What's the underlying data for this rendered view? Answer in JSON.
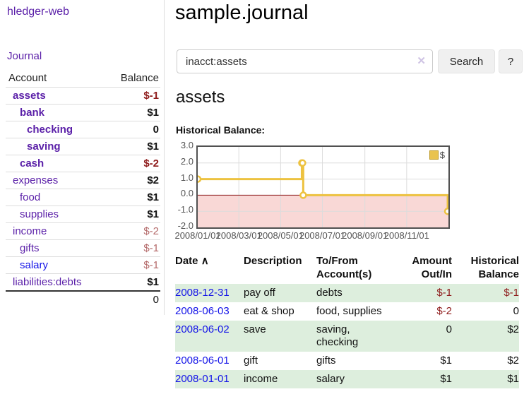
{
  "colors": {
    "link_purple": "#5a1fa8",
    "link_blue": "#1414e8",
    "negative_dark": "#8e1b1b",
    "negative_light": "#b46a6a",
    "positive_text": "#111111",
    "row_stripe_green": "#ddeedd",
    "chart_line_yellow": "#edc240",
    "chart_negative_region": "#f9d8d6",
    "chart_zero_line": "#8b1a1a",
    "chart_grid": "#dcdcdc"
  },
  "sidebar": {
    "brand": "hledger-web",
    "journal_label": "Journal",
    "accounts": {
      "col_account": "Account",
      "col_balance": "Balance",
      "rows": [
        {
          "name": "assets",
          "indent": 1,
          "bold": true,
          "balance": "$-1",
          "negative": true
        },
        {
          "name": "bank",
          "indent": 2,
          "bold": true,
          "balance": "$1",
          "negative": false
        },
        {
          "name": "checking",
          "indent": 3,
          "bold": true,
          "balance": "0",
          "negative": false
        },
        {
          "name": "saving",
          "indent": 3,
          "bold": true,
          "balance": "$1",
          "negative": false
        },
        {
          "name": "cash",
          "indent": 2,
          "bold": true,
          "balance": "$-2",
          "negative": true
        },
        {
          "name": "expenses",
          "indent": 1,
          "bold": false,
          "balance": "$2",
          "negative": false
        },
        {
          "name": "food",
          "indent": 2,
          "bold": false,
          "balance": "$1",
          "negative": false
        },
        {
          "name": "supplies",
          "indent": 2,
          "bold": false,
          "balance": "$1",
          "negative": false
        },
        {
          "name": "income",
          "indent": 1,
          "bold": false,
          "balance": "$-2",
          "negative": true
        },
        {
          "name": "gifts",
          "indent": 2,
          "bold": false,
          "balance": "$-1",
          "negative": true
        },
        {
          "name": "salary",
          "indent": 2,
          "bold": false,
          "balance": "$-1",
          "negative": true,
          "link": "blue"
        },
        {
          "name": "liabilities:debts",
          "indent": 1,
          "bold": false,
          "balance": "$1",
          "negative": false
        }
      ],
      "total": "0"
    }
  },
  "main": {
    "title": "sample.journal",
    "search": {
      "value": "inacct:assets",
      "clear_icon": "✕",
      "button": "Search",
      "help_button": "?"
    },
    "account_heading": "assets",
    "chart_label": "Historical Balance:"
  },
  "chart_data": {
    "type": "line",
    "title": "Historical Balance:",
    "step": true,
    "series": [
      {
        "name": "$",
        "points": [
          [
            "2008-01-01",
            1
          ],
          [
            "2008-06-01",
            2
          ],
          [
            "2008-06-02",
            2
          ],
          [
            "2008-06-03",
            0
          ],
          [
            "2008-12-31",
            -1
          ]
        ]
      }
    ],
    "xrange": [
      "2008-01-01",
      "2009-01-01"
    ],
    "ylim": [
      -2,
      3
    ],
    "yticks": [
      [
        3,
        "3.0"
      ],
      [
        2,
        "2.0"
      ],
      [
        1,
        "1.0"
      ],
      [
        0,
        "0.0"
      ],
      [
        -1,
        "-1.0"
      ],
      [
        -2,
        "-2.0"
      ]
    ],
    "xticks": [
      [
        "2008-01-01",
        "2008/01/01"
      ],
      [
        "2008-03-01",
        "2008/03/01"
      ],
      [
        "2008-05-01",
        "2008/05/01"
      ],
      [
        "2008-07-01",
        "2008/07/01"
      ],
      [
        "2008-09-01",
        "2008/09/01"
      ],
      [
        "2008-11-01",
        "2008/11/01"
      ]
    ],
    "legend": {
      "position": "top-right",
      "label": "$"
    },
    "grid": true
  },
  "transactions": {
    "sort_icon": "∧",
    "headers": {
      "date": "Date",
      "description": "Description",
      "accounts": "To/From\nAccount(s)",
      "amount": "Amount\nOut/In",
      "balance": "Historical\nBalance"
    },
    "rows": [
      {
        "date": "2008-12-31",
        "description": "pay off",
        "accounts": "debts",
        "amount": "$-1",
        "amount_negative": true,
        "balance": "$-1",
        "balance_negative": true
      },
      {
        "date": "2008-06-03",
        "description": "eat & shop",
        "accounts": "food, supplies",
        "amount": "$-2",
        "amount_negative": true,
        "balance": "0",
        "balance_negative": false
      },
      {
        "date": "2008-06-02",
        "description": "save",
        "accounts": "saving, checking",
        "amount": "0",
        "amount_negative": false,
        "balance": "$2",
        "balance_negative": false
      },
      {
        "date": "2008-06-01",
        "description": "gift",
        "accounts": "gifts",
        "amount": "$1",
        "amount_negative": false,
        "balance": "$2",
        "balance_negative": false
      },
      {
        "date": "2008-01-01",
        "description": "income",
        "accounts": "salary",
        "amount": "$1",
        "amount_negative": false,
        "balance": "$1",
        "balance_negative": false
      }
    ]
  }
}
